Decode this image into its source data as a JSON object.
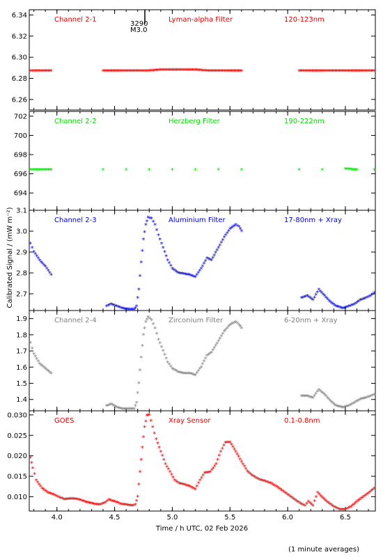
{
  "figure": {
    "ylabel": "Calibrated Signal / (mW m⁻²)",
    "xlabel": "Time / h UTC, 02 Feb 2026",
    "footnote": "(1 minute averages)",
    "flare_marker": {
      "id": "3290",
      "class": "M3.0",
      "time": 4.78
    }
  },
  "chart_data": [
    {
      "type": "scatter",
      "labels": {
        "channel": "Channel 2-1",
        "filter": "Lyman-alpha Filter",
        "band": "120-123nm"
      },
      "color": "#e00000",
      "xlim": [
        3.76,
        6.76
      ],
      "ylim": [
        6.25,
        6.345
      ],
      "yticks": [
        6.26,
        6.28,
        6.3,
        6.32,
        6.34
      ],
      "ytick_labels": [
        "6.26",
        "6.28",
        "6.30",
        "6.32",
        "6.34"
      ],
      "points": [
        [
          3.77,
          6.287
        ],
        [
          3.8,
          6.287
        ],
        [
          3.85,
          6.287
        ],
        [
          3.9,
          6.287
        ],
        [
          3.95,
          6.287
        ],
        [
          4.4,
          6.287
        ],
        [
          4.5,
          6.287
        ],
        [
          4.6,
          6.287
        ],
        [
          4.7,
          6.287
        ],
        [
          4.8,
          6.287
        ],
        [
          4.9,
          6.288
        ],
        [
          5.0,
          6.288
        ],
        [
          5.1,
          6.288
        ],
        [
          5.2,
          6.288
        ],
        [
          5.3,
          6.287
        ],
        [
          5.4,
          6.287
        ],
        [
          5.5,
          6.287
        ],
        [
          5.6,
          6.287
        ],
        [
          6.1,
          6.287
        ],
        [
          6.2,
          6.287
        ],
        [
          6.3,
          6.287
        ],
        [
          6.4,
          6.287
        ],
        [
          6.5,
          6.287
        ],
        [
          6.6,
          6.287
        ],
        [
          6.7,
          6.287
        ],
        [
          6.75,
          6.287
        ]
      ]
    },
    {
      "type": "scatter",
      "labels": {
        "channel": "Channel 2-2",
        "filter": "Herzberg Filter",
        "band": "190-222nm"
      },
      "color": "#00dd00",
      "xlim": [
        3.76,
        6.76
      ],
      "ylim": [
        692.2,
        702.5
      ],
      "yticks": [
        694,
        696,
        698,
        700,
        702
      ],
      "ytick_labels": [
        "694",
        "696",
        "698",
        "700",
        "702"
      ],
      "points": [
        [
          3.77,
          696.4
        ],
        [
          3.85,
          696.4
        ],
        [
          3.95,
          696.4
        ],
        [
          4.4,
          696.4
        ],
        [
          4.6,
          696.4
        ],
        [
          4.8,
          696.4
        ],
        [
          5.0,
          696.4
        ],
        [
          5.2,
          696.4
        ],
        [
          5.4,
          696.4
        ],
        [
          5.6,
          696.4
        ],
        [
          6.1,
          696.4
        ],
        [
          6.3,
          696.4
        ],
        [
          6.5,
          696.5
        ],
        [
          6.6,
          696.4
        ],
        [
          6.75,
          696.4
        ]
      ]
    },
    {
      "type": "scatter",
      "labels": {
        "channel": "Channel 2-3",
        "filter": "Aluminium Filter",
        "band": "17-80nm + Xray"
      },
      "color": "#0000cc",
      "xlim": [
        3.76,
        6.76
      ],
      "ylim": [
        2.62,
        3.1
      ],
      "yticks": [
        2.7,
        2.8,
        2.9,
        3.0,
        3.1
      ],
      "ytick_labels": [
        "2.7",
        "2.8",
        "2.9",
        "3.0",
        "3.1"
      ],
      "points": [
        [
          3.77,
          2.94
        ],
        [
          3.8,
          2.9
        ],
        [
          3.85,
          2.86
        ],
        [
          3.9,
          2.83
        ],
        [
          3.95,
          2.79
        ],
        [
          4.43,
          2.64
        ],
        [
          4.47,
          2.65
        ],
        [
          4.52,
          2.64
        ],
        [
          4.57,
          2.63
        ],
        [
          4.62,
          2.625
        ],
        [
          4.67,
          2.625
        ],
        [
          4.69,
          2.64
        ],
        [
          4.71,
          2.72
        ],
        [
          4.73,
          2.85
        ],
        [
          4.75,
          2.96
        ],
        [
          4.77,
          3.03
        ],
        [
          4.79,
          3.065
        ],
        [
          4.82,
          3.06
        ],
        [
          4.85,
          3.03
        ],
        [
          4.88,
          2.98
        ],
        [
          4.92,
          2.92
        ],
        [
          4.96,
          2.86
        ],
        [
          5.0,
          2.82
        ],
        [
          5.05,
          2.8
        ],
        [
          5.1,
          2.795
        ],
        [
          5.15,
          2.79
        ],
        [
          5.2,
          2.78
        ],
        [
          5.25,
          2.82
        ],
        [
          5.3,
          2.87
        ],
        [
          5.34,
          2.86
        ],
        [
          5.4,
          2.92
        ],
        [
          5.45,
          2.97
        ],
        [
          5.5,
          3.01
        ],
        [
          5.55,
          3.03
        ],
        [
          5.58,
          3.02
        ],
        [
          5.6,
          3.0
        ],
        [
          6.12,
          2.68
        ],
        [
          6.17,
          2.69
        ],
        [
          6.22,
          2.67
        ],
        [
          6.27,
          2.72
        ],
        [
          6.32,
          2.69
        ],
        [
          6.37,
          2.66
        ],
        [
          6.42,
          2.64
        ],
        [
          6.48,
          2.63
        ],
        [
          6.53,
          2.64
        ],
        [
          6.58,
          2.65
        ],
        [
          6.63,
          2.67
        ],
        [
          6.68,
          2.68
        ],
        [
          6.72,
          2.69
        ],
        [
          6.75,
          2.705
        ]
      ]
    },
    {
      "type": "scatter",
      "labels": {
        "channel": "Channel 2-4",
        "filter": "Zirconium Filter",
        "band": "6-20nm + Xray"
      },
      "color": "#808080",
      "xlim": [
        3.76,
        6.76
      ],
      "ylim": [
        1.33,
        1.95
      ],
      "yticks": [
        1.4,
        1.5,
        1.6,
        1.7,
        1.8,
        1.9
      ],
      "ytick_labels": [
        "1.4",
        "1.5",
        "1.6",
        "1.7",
        "1.8",
        "1.9"
      ],
      "points": [
        [
          3.77,
          1.75
        ],
        [
          3.8,
          1.68
        ],
        [
          3.85,
          1.62
        ],
        [
          3.9,
          1.59
        ],
        [
          3.95,
          1.56
        ],
        [
          4.43,
          1.36
        ],
        [
          4.47,
          1.37
        ],
        [
          4.52,
          1.35
        ],
        [
          4.57,
          1.34
        ],
        [
          4.62,
          1.34
        ],
        [
          4.67,
          1.34
        ],
        [
          4.69,
          1.38
        ],
        [
          4.71,
          1.5
        ],
        [
          4.73,
          1.66
        ],
        [
          4.75,
          1.8
        ],
        [
          4.77,
          1.88
        ],
        [
          4.79,
          1.91
        ],
        [
          4.82,
          1.89
        ],
        [
          4.85,
          1.84
        ],
        [
          4.88,
          1.77
        ],
        [
          4.92,
          1.7
        ],
        [
          4.96,
          1.63
        ],
        [
          5.0,
          1.59
        ],
        [
          5.05,
          1.57
        ],
        [
          5.1,
          1.56
        ],
        [
          5.15,
          1.56
        ],
        [
          5.2,
          1.55
        ],
        [
          5.25,
          1.6
        ],
        [
          5.3,
          1.67
        ],
        [
          5.34,
          1.69
        ],
        [
          5.4,
          1.76
        ],
        [
          5.45,
          1.82
        ],
        [
          5.5,
          1.86
        ],
        [
          5.55,
          1.88
        ],
        [
          5.58,
          1.86
        ],
        [
          5.6,
          1.84
        ],
        [
          6.12,
          1.42
        ],
        [
          6.17,
          1.42
        ],
        [
          6.22,
          1.41
        ],
        [
          6.27,
          1.46
        ],
        [
          6.32,
          1.43
        ],
        [
          6.37,
          1.39
        ],
        [
          6.42,
          1.36
        ],
        [
          6.48,
          1.35
        ],
        [
          6.53,
          1.36
        ],
        [
          6.58,
          1.38
        ],
        [
          6.63,
          1.4
        ],
        [
          6.68,
          1.41
        ],
        [
          6.72,
          1.42
        ],
        [
          6.75,
          1.43
        ]
      ]
    },
    {
      "type": "scatter",
      "labels": {
        "channel": "GOES",
        "filter": "Xray Sensor",
        "band": "0.1-0.8nm"
      },
      "color": "#e00000",
      "xlim": [
        3.76,
        6.76
      ],
      "ylim": [
        0.0065,
        0.031
      ],
      "yticks": [
        0.01,
        0.015,
        0.02,
        0.025,
        0.03
      ],
      "ytick_labels": [
        "0.010",
        "0.015",
        "0.020",
        "0.025",
        "0.030"
      ],
      "xticks": [
        4.0,
        4.5,
        5.0,
        5.5,
        6.0,
        6.5
      ],
      "xtick_labels": [
        "4.0",
        "4.5",
        "5.0",
        "5.5",
        "6.0",
        "6.5"
      ],
      "points": [
        [
          3.77,
          0.0195
        ],
        [
          3.79,
          0.017
        ],
        [
          3.82,
          0.014
        ],
        [
          3.87,
          0.012
        ],
        [
          3.92,
          0.011
        ],
        [
          3.97,
          0.0105
        ],
        [
          4.02,
          0.0098
        ],
        [
          4.07,
          0.0093
        ],
        [
          4.12,
          0.0095
        ],
        [
          4.17,
          0.0094
        ],
        [
          4.22,
          0.009
        ],
        [
          4.27,
          0.0085
        ],
        [
          4.32,
          0.0082
        ],
        [
          4.37,
          0.008
        ],
        [
          4.42,
          0.0085
        ],
        [
          4.45,
          0.0092
        ],
        [
          4.5,
          0.0088
        ],
        [
          4.55,
          0.0082
        ],
        [
          4.6,
          0.008
        ],
        [
          4.65,
          0.0078
        ],
        [
          4.68,
          0.008
        ],
        [
          4.7,
          0.01
        ],
        [
          4.72,
          0.016
        ],
        [
          4.74,
          0.022
        ],
        [
          4.76,
          0.027
        ],
        [
          4.78,
          0.0298
        ],
        [
          4.8,
          0.03
        ],
        [
          4.83,
          0.027
        ],
        [
          4.86,
          0.024
        ],
        [
          4.9,
          0.021
        ],
        [
          4.94,
          0.018
        ],
        [
          4.98,
          0.016
        ],
        [
          5.02,
          0.014
        ],
        [
          5.06,
          0.0132
        ],
        [
          5.1,
          0.013
        ],
        [
          5.15,
          0.0125
        ],
        [
          5.2,
          0.0118
        ],
        [
          5.24,
          0.014
        ],
        [
          5.28,
          0.0158
        ],
        [
          5.33,
          0.016
        ],
        [
          5.38,
          0.018
        ],
        [
          5.42,
          0.021
        ],
        [
          5.46,
          0.0232
        ],
        [
          5.5,
          0.0233
        ],
        [
          5.55,
          0.021
        ],
        [
          5.6,
          0.0185
        ],
        [
          5.65,
          0.0162
        ],
        [
          5.7,
          0.015
        ],
        [
          5.75,
          0.0142
        ],
        [
          5.8,
          0.0138
        ],
        [
          5.85,
          0.0133
        ],
        [
          5.9,
          0.0125
        ],
        [
          5.95,
          0.0115
        ],
        [
          6.0,
          0.0105
        ],
        [
          6.05,
          0.0095
        ],
        [
          6.1,
          0.0085
        ],
        [
          6.15,
          0.0078
        ],
        [
          6.18,
          0.0088
        ],
        [
          6.22,
          0.0078
        ],
        [
          6.26,
          0.011
        ],
        [
          6.3,
          0.0098
        ],
        [
          6.35,
          0.0085
        ],
        [
          6.4,
          0.0075
        ],
        [
          6.45,
          0.0068
        ],
        [
          6.5,
          0.0068
        ],
        [
          6.55,
          0.0075
        ],
        [
          6.6,
          0.0088
        ],
        [
          6.65,
          0.0098
        ],
        [
          6.7,
          0.0108
        ],
        [
          6.75,
          0.012
        ]
      ]
    }
  ]
}
